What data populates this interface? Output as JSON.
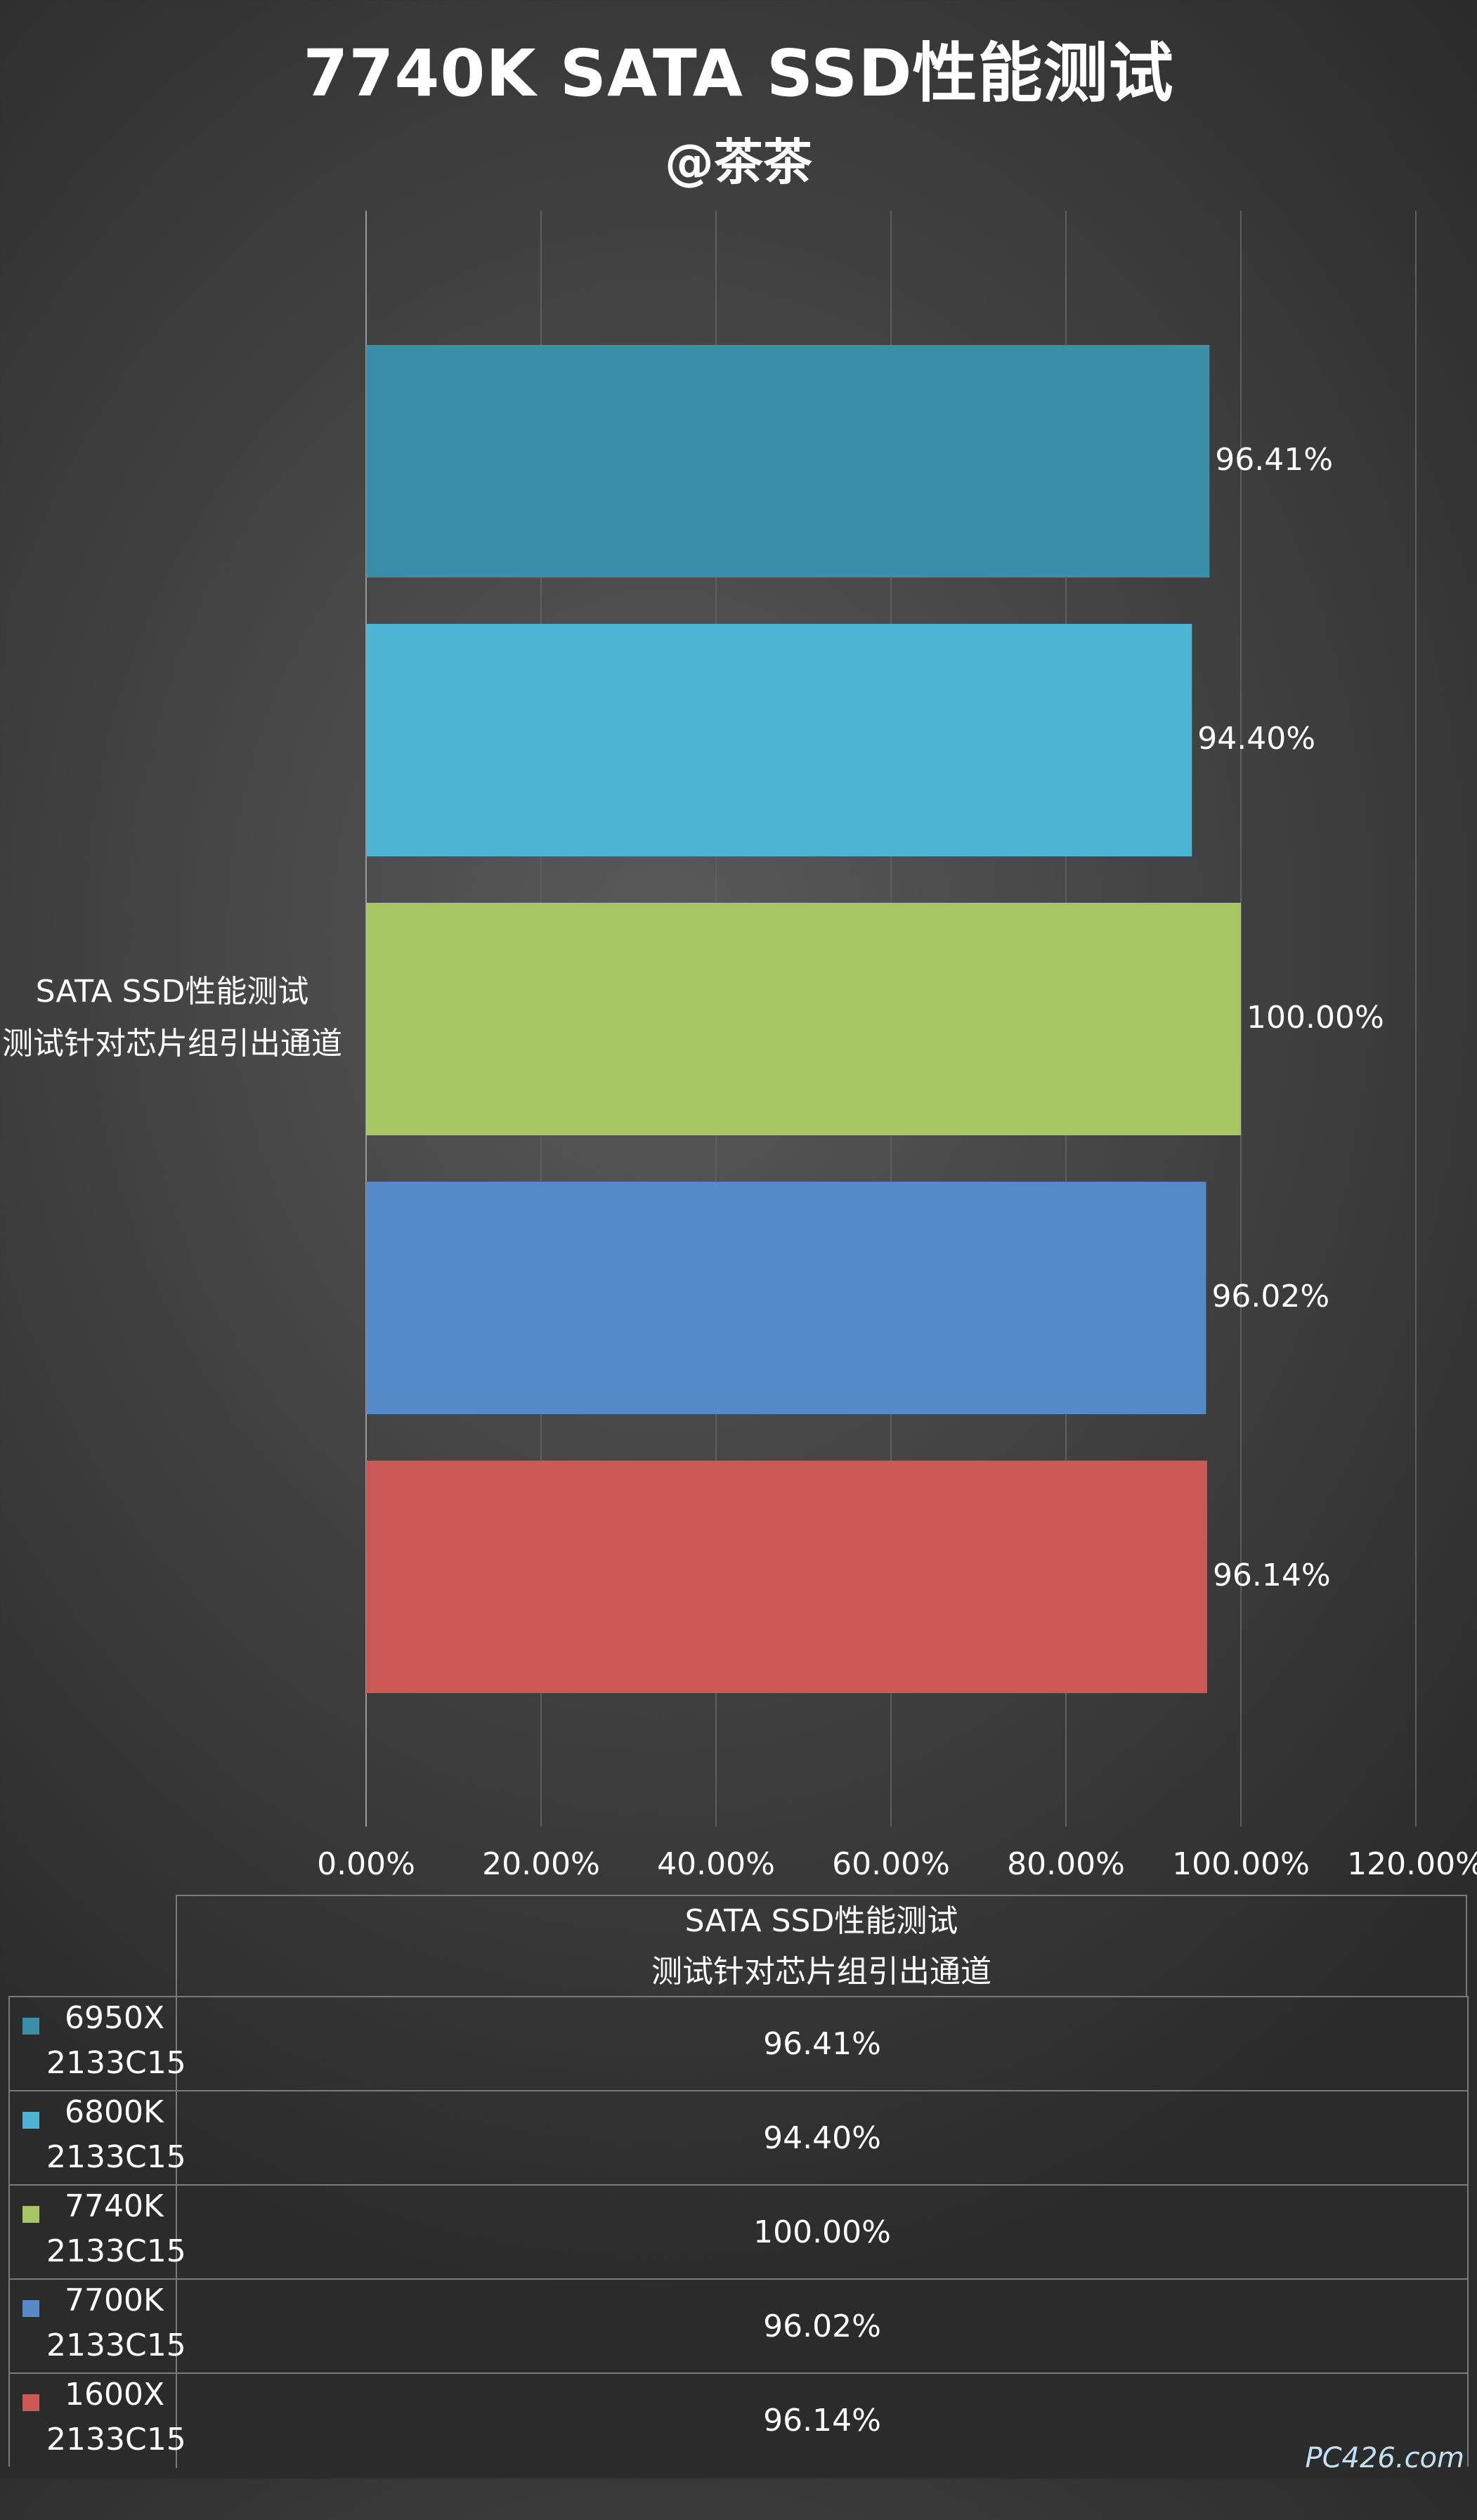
{
  "chart_data": {
    "type": "bar",
    "orientation": "horizontal",
    "title": "7740K SATA SSD性能测试",
    "subtitle": "@茶茶",
    "category_label_lines": [
      "SATA SSD性能测试",
      "测试针对芯片组引出通道"
    ],
    "xlim": [
      0,
      120
    ],
    "x_ticks": [
      "0.00%",
      "20.00%",
      "40.00%",
      "60.00%",
      "80.00%",
      "100.00%",
      "120.00%"
    ],
    "grid": true,
    "series": [
      {
        "name": "6950X",
        "sub": "2133C15",
        "value": 96.41,
        "label": "96.41%",
        "color": "#3a8ea8"
      },
      {
        "name": "6800K",
        "sub": "2133C15",
        "value": 94.4,
        "label": "94.40%",
        "color": "#4fb4d3"
      },
      {
        "name": "7740K",
        "sub": "2133C15",
        "value": 100.0,
        "label": "100.00%",
        "color": "#a5c663"
      },
      {
        "name": "7700K",
        "sub": "2133C15",
        "value": 96.02,
        "label": "96.02%",
        "color": "#5589c8"
      },
      {
        "name": "1600X",
        "sub": "2133C15",
        "value": 96.14,
        "label": "96.14%",
        "color": "#cc5856"
      }
    ]
  },
  "watermark": "PC426.com"
}
